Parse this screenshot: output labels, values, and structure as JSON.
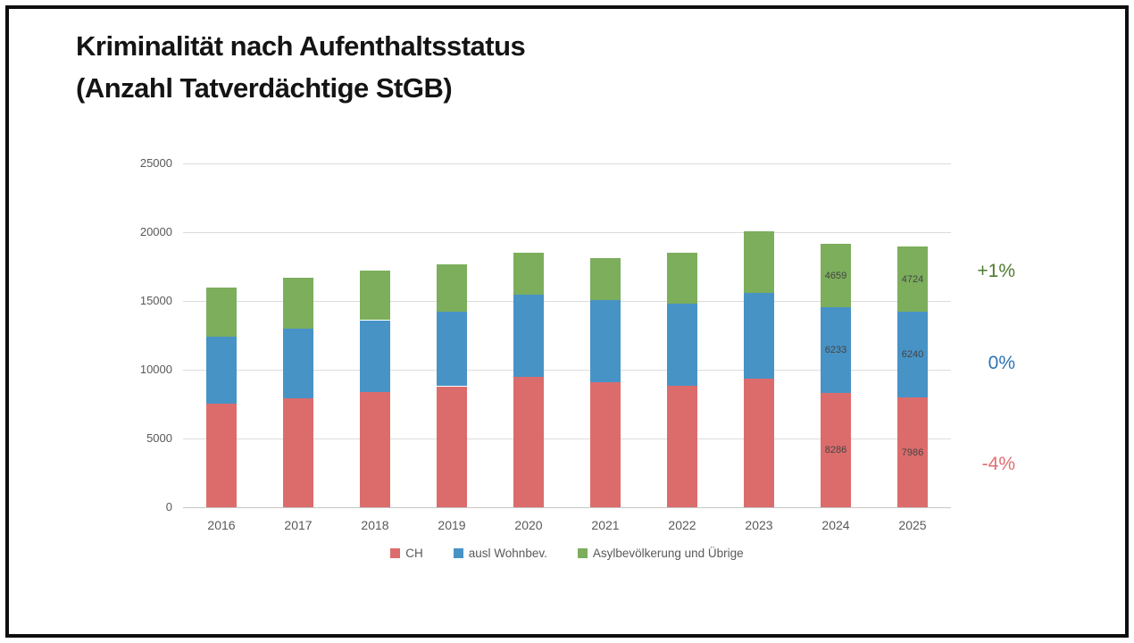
{
  "title": {
    "line1": "Kriminalität nach Aufenthaltsstatus",
    "line2": "(Anzahl Tatverdächtige StGB)"
  },
  "chart_data": {
    "type": "bar",
    "stacked": true,
    "title": "Kriminalität nach Aufenthaltsstatus (Anzahl Tatverdächtige StGB)",
    "categories": [
      "2016",
      "2017",
      "2018",
      "2019",
      "2020",
      "2021",
      "2022",
      "2023",
      "2024",
      "2025"
    ],
    "series": [
      {
        "name": "CH",
        "color": "#DC6C6C",
        "values": [
          7550,
          7950,
          8400,
          8800,
          9500,
          9100,
          8850,
          9350,
          8286,
          7986
        ]
      },
      {
        "name": "ausl Wohnbev.",
        "color": "#4793C6",
        "values": [
          4850,
          5050,
          5200,
          5450,
          5950,
          6000,
          5950,
          6250,
          6233,
          6240
        ]
      },
      {
        "name": "Asylbevölkerung und Übrige",
        "color": "#7CAE5C",
        "values": [
          3600,
          3700,
          3600,
          3400,
          3050,
          3050,
          3700,
          4500,
          4659,
          4724
        ]
      }
    ],
    "value_labels_on": [
      "2024",
      "2025"
    ],
    "xlabel": "",
    "ylabel": "",
    "ylim": [
      0,
      25000
    ],
    "yticks": [
      0,
      5000,
      10000,
      15000,
      20000,
      25000
    ],
    "grid": true,
    "legend_position": "bottom"
  },
  "annotations": [
    {
      "text": "+1%",
      "color": "#4E7B2F"
    },
    {
      "text": "0%",
      "color": "#2E74B5"
    },
    {
      "text": "-4%",
      "color": "#E06E72"
    }
  ],
  "colors": {
    "grid": "#DCDCDC",
    "baseline": "#C6C6C6",
    "axis_text": "#595959",
    "bar_label_text": "#444444"
  }
}
